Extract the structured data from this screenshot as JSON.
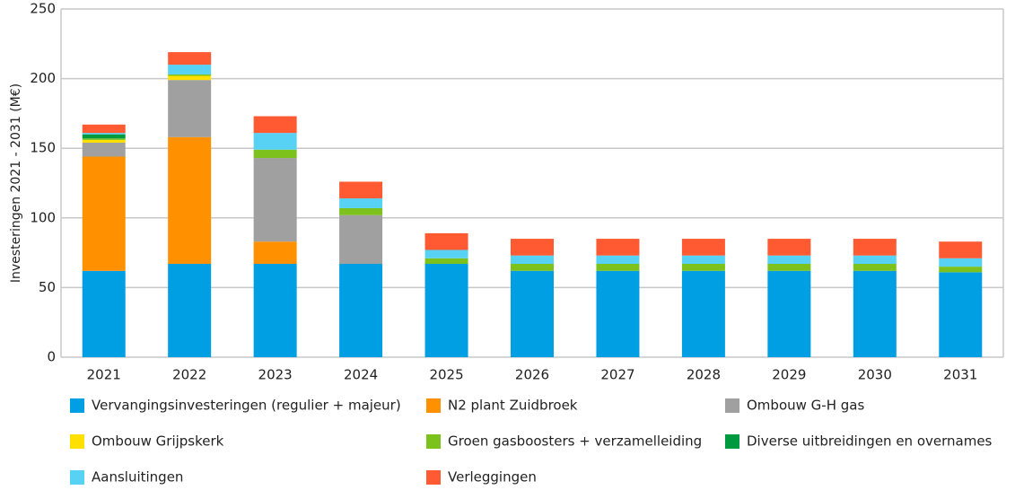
{
  "chart_data": {
    "type": "stacked_bar",
    "y_label": "Investeringen 2021 - 2031 (M€)",
    "categories": [
      "2021",
      "2022",
      "2023",
      "2024",
      "2025",
      "2026",
      "2027",
      "2028",
      "2029",
      "2030",
      "2031"
    ],
    "series": [
      {
        "name": "Vervangingsinvesteringen (regulier + majeur)",
        "color": "#009fe3",
        "values": [
          62,
          67,
          67,
          67,
          67,
          62,
          62,
          62,
          62,
          62,
          61
        ]
      },
      {
        "name": "N2 plant Zuidbroek",
        "color": "#ff9100",
        "values": [
          82,
          91,
          16,
          0,
          0,
          0,
          0,
          0,
          0,
          0,
          0
        ]
      },
      {
        "name": "Ombouw G-H gas",
        "color": "#a0a0a0",
        "values": [
          10,
          41,
          60,
          35,
          0,
          0,
          0,
          0,
          0,
          0,
          0
        ]
      },
      {
        "name": "Ombouw Grijpskerk",
        "color": "#ffe000",
        "values": [
          2,
          3,
          0,
          0,
          0,
          0,
          0,
          0,
          0,
          0,
          0
        ]
      },
      {
        "name": "Groen gasboosters + verzamelleiding",
        "color": "#7dc11c",
        "values": [
          1,
          1,
          6,
          5,
          4,
          5,
          5,
          5,
          5,
          5,
          4
        ]
      },
      {
        "name": "Diverse uitbreidingen en overnames",
        "color": "#009a3e",
        "values": [
          3,
          0,
          0,
          0,
          0,
          0,
          0,
          0,
          0,
          0,
          0
        ]
      },
      {
        "name": "Aansluitingen",
        "color": "#57d2f4",
        "values": [
          1,
          7,
          12,
          7,
          6,
          6,
          6,
          6,
          6,
          6,
          6
        ]
      },
      {
        "name": "Verleggingen",
        "color": "#ff5a32",
        "values": [
          6,
          9,
          12,
          12,
          12,
          12,
          12,
          12,
          12,
          12,
          12
        ]
      }
    ],
    "ylim": [
      0,
      250
    ],
    "yticks": [
      0,
      50,
      100,
      150,
      200,
      250
    ],
    "grid": true
  }
}
